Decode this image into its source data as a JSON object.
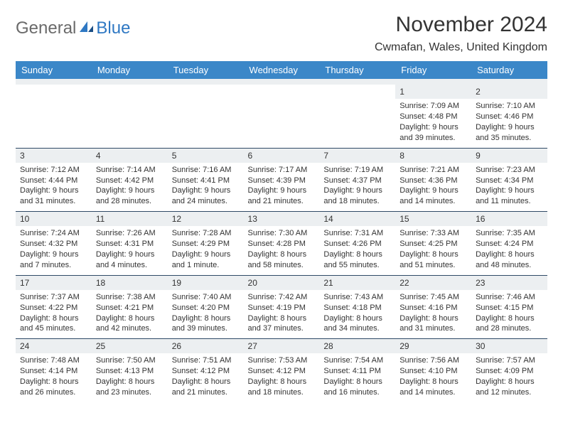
{
  "logo": {
    "general": "General",
    "blue": "Blue"
  },
  "title": "November 2024",
  "location": "Cwmafan, Wales, United Kingdom",
  "colors": {
    "header_bg": "#3b87c8",
    "header_text": "#ffffff",
    "band_bg": "#eceff1",
    "text": "#333333",
    "sep": "#2f4a66",
    "logo_gray": "#6a6a6a",
    "logo_blue": "#2f78c3"
  },
  "weekdays": [
    "Sunday",
    "Monday",
    "Tuesday",
    "Wednesday",
    "Thursday",
    "Friday",
    "Saturday"
  ],
  "weeks": [
    [
      null,
      null,
      null,
      null,
      null,
      {
        "n": "1",
        "sr": "Sunrise: 7:09 AM",
        "ss": "Sunset: 4:48 PM",
        "dl": "Daylight: 9 hours and 39 minutes."
      },
      {
        "n": "2",
        "sr": "Sunrise: 7:10 AM",
        "ss": "Sunset: 4:46 PM",
        "dl": "Daylight: 9 hours and 35 minutes."
      }
    ],
    [
      {
        "n": "3",
        "sr": "Sunrise: 7:12 AM",
        "ss": "Sunset: 4:44 PM",
        "dl": "Daylight: 9 hours and 31 minutes."
      },
      {
        "n": "4",
        "sr": "Sunrise: 7:14 AM",
        "ss": "Sunset: 4:42 PM",
        "dl": "Daylight: 9 hours and 28 minutes."
      },
      {
        "n": "5",
        "sr": "Sunrise: 7:16 AM",
        "ss": "Sunset: 4:41 PM",
        "dl": "Daylight: 9 hours and 24 minutes."
      },
      {
        "n": "6",
        "sr": "Sunrise: 7:17 AM",
        "ss": "Sunset: 4:39 PM",
        "dl": "Daylight: 9 hours and 21 minutes."
      },
      {
        "n": "7",
        "sr": "Sunrise: 7:19 AM",
        "ss": "Sunset: 4:37 PM",
        "dl": "Daylight: 9 hours and 18 minutes."
      },
      {
        "n": "8",
        "sr": "Sunrise: 7:21 AM",
        "ss": "Sunset: 4:36 PM",
        "dl": "Daylight: 9 hours and 14 minutes."
      },
      {
        "n": "9",
        "sr": "Sunrise: 7:23 AM",
        "ss": "Sunset: 4:34 PM",
        "dl": "Daylight: 9 hours and 11 minutes."
      }
    ],
    [
      {
        "n": "10",
        "sr": "Sunrise: 7:24 AM",
        "ss": "Sunset: 4:32 PM",
        "dl": "Daylight: 9 hours and 7 minutes."
      },
      {
        "n": "11",
        "sr": "Sunrise: 7:26 AM",
        "ss": "Sunset: 4:31 PM",
        "dl": "Daylight: 9 hours and 4 minutes."
      },
      {
        "n": "12",
        "sr": "Sunrise: 7:28 AM",
        "ss": "Sunset: 4:29 PM",
        "dl": "Daylight: 9 hours and 1 minute."
      },
      {
        "n": "13",
        "sr": "Sunrise: 7:30 AM",
        "ss": "Sunset: 4:28 PM",
        "dl": "Daylight: 8 hours and 58 minutes."
      },
      {
        "n": "14",
        "sr": "Sunrise: 7:31 AM",
        "ss": "Sunset: 4:26 PM",
        "dl": "Daylight: 8 hours and 55 minutes."
      },
      {
        "n": "15",
        "sr": "Sunrise: 7:33 AM",
        "ss": "Sunset: 4:25 PM",
        "dl": "Daylight: 8 hours and 51 minutes."
      },
      {
        "n": "16",
        "sr": "Sunrise: 7:35 AM",
        "ss": "Sunset: 4:24 PM",
        "dl": "Daylight: 8 hours and 48 minutes."
      }
    ],
    [
      {
        "n": "17",
        "sr": "Sunrise: 7:37 AM",
        "ss": "Sunset: 4:22 PM",
        "dl": "Daylight: 8 hours and 45 minutes."
      },
      {
        "n": "18",
        "sr": "Sunrise: 7:38 AM",
        "ss": "Sunset: 4:21 PM",
        "dl": "Daylight: 8 hours and 42 minutes."
      },
      {
        "n": "19",
        "sr": "Sunrise: 7:40 AM",
        "ss": "Sunset: 4:20 PM",
        "dl": "Daylight: 8 hours and 39 minutes."
      },
      {
        "n": "20",
        "sr": "Sunrise: 7:42 AM",
        "ss": "Sunset: 4:19 PM",
        "dl": "Daylight: 8 hours and 37 minutes."
      },
      {
        "n": "21",
        "sr": "Sunrise: 7:43 AM",
        "ss": "Sunset: 4:18 PM",
        "dl": "Daylight: 8 hours and 34 minutes."
      },
      {
        "n": "22",
        "sr": "Sunrise: 7:45 AM",
        "ss": "Sunset: 4:16 PM",
        "dl": "Daylight: 8 hours and 31 minutes."
      },
      {
        "n": "23",
        "sr": "Sunrise: 7:46 AM",
        "ss": "Sunset: 4:15 PM",
        "dl": "Daylight: 8 hours and 28 minutes."
      }
    ],
    [
      {
        "n": "24",
        "sr": "Sunrise: 7:48 AM",
        "ss": "Sunset: 4:14 PM",
        "dl": "Daylight: 8 hours and 26 minutes."
      },
      {
        "n": "25",
        "sr": "Sunrise: 7:50 AM",
        "ss": "Sunset: 4:13 PM",
        "dl": "Daylight: 8 hours and 23 minutes."
      },
      {
        "n": "26",
        "sr": "Sunrise: 7:51 AM",
        "ss": "Sunset: 4:12 PM",
        "dl": "Daylight: 8 hours and 21 minutes."
      },
      {
        "n": "27",
        "sr": "Sunrise: 7:53 AM",
        "ss": "Sunset: 4:12 PM",
        "dl": "Daylight: 8 hours and 18 minutes."
      },
      {
        "n": "28",
        "sr": "Sunrise: 7:54 AM",
        "ss": "Sunset: 4:11 PM",
        "dl": "Daylight: 8 hours and 16 minutes."
      },
      {
        "n": "29",
        "sr": "Sunrise: 7:56 AM",
        "ss": "Sunset: 4:10 PM",
        "dl": "Daylight: 8 hours and 14 minutes."
      },
      {
        "n": "30",
        "sr": "Sunrise: 7:57 AM",
        "ss": "Sunset: 4:09 PM",
        "dl": "Daylight: 8 hours and 12 minutes."
      }
    ]
  ]
}
